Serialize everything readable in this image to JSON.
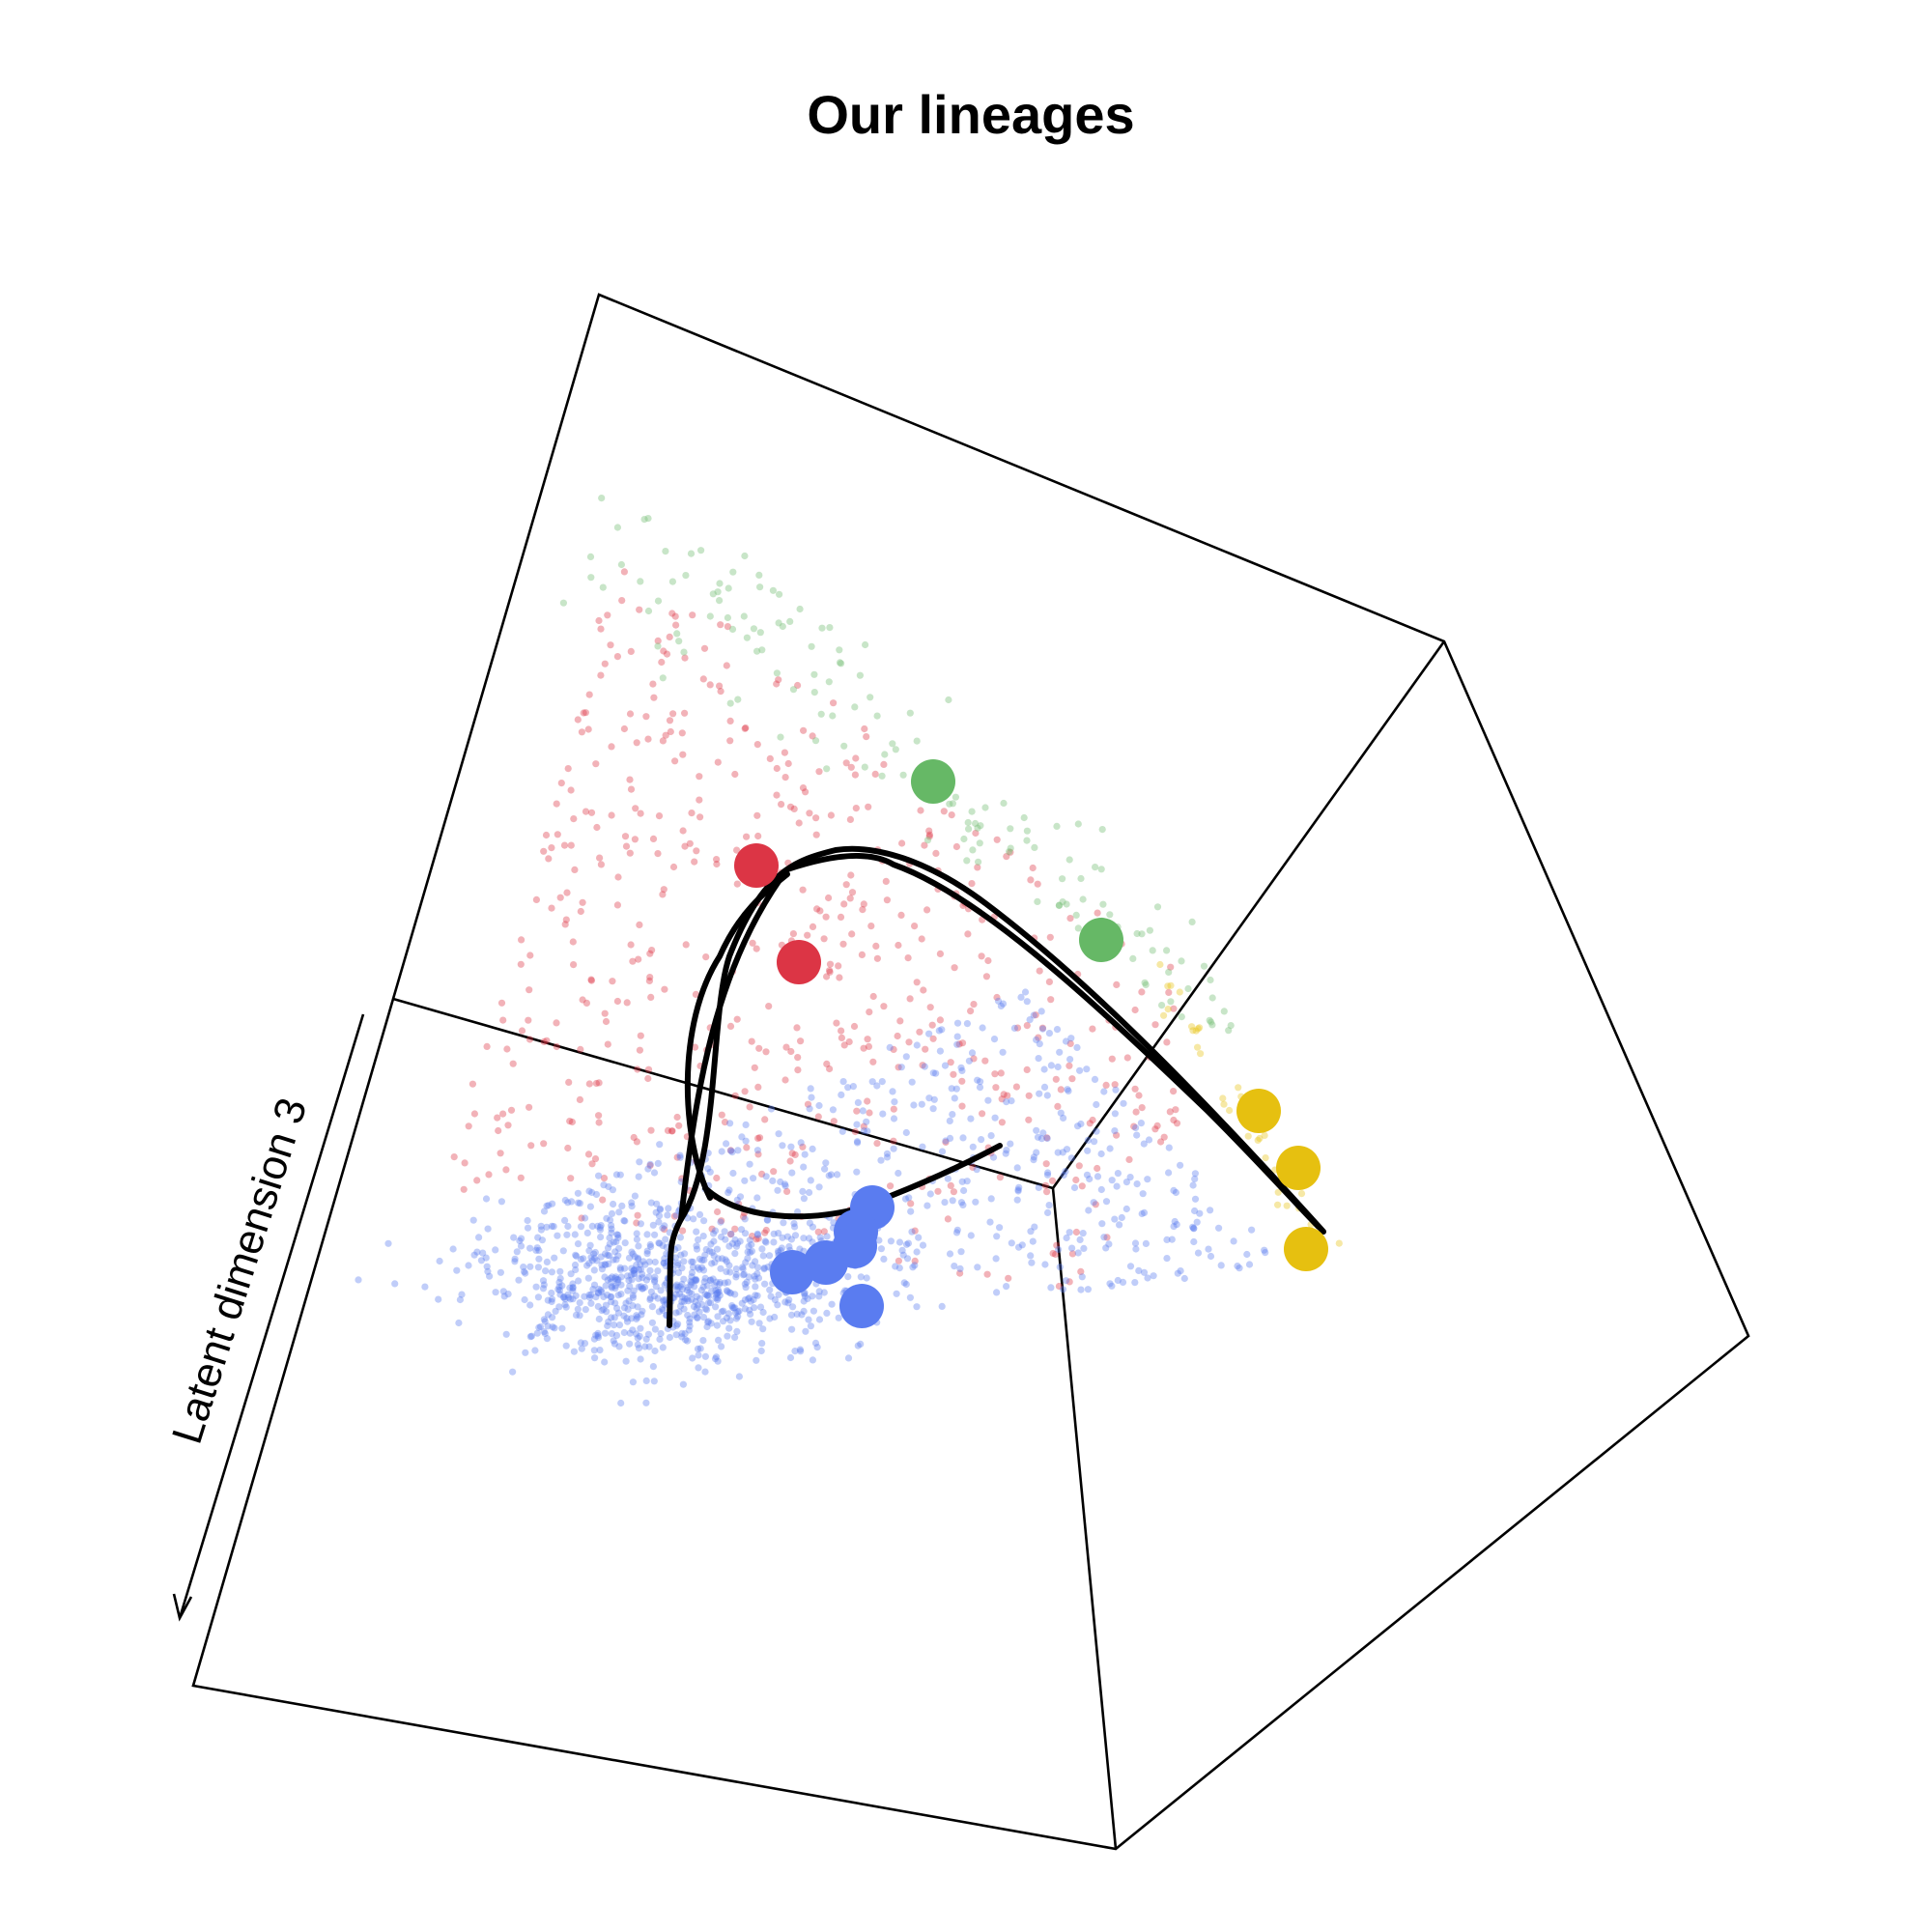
{
  "chart_data": {
    "type": "scatter",
    "title": "Our lineages",
    "zlabel": "Latent dimension 3",
    "series": [
      {
        "color": "#dc3545",
        "points": 560
      },
      {
        "color": "#7bc07b",
        "points": 150
      },
      {
        "color": "#5a7cf0",
        "points": 1250
      },
      {
        "color": "#e8c313",
        "points": 40
      }
    ],
    "centroids": [
      {
        "color": "#dc3545"
      },
      {
        "color": "#dc3545"
      },
      {
        "color": "#66b866"
      },
      {
        "color": "#66b866"
      },
      {
        "color": "#5a7cf0"
      },
      {
        "color": "#5a7cf0"
      },
      {
        "color": "#5a7cf0"
      },
      {
        "color": "#5a7cf0"
      },
      {
        "color": "#5a7cf0"
      },
      {
        "color": "#5a7cf0"
      },
      {
        "color": "#e6c010"
      },
      {
        "color": "#e6c010"
      },
      {
        "color": "#e6c010"
      }
    ],
    "lineage_curves": 3,
    "box": true,
    "grid": false,
    "legend": "none"
  }
}
